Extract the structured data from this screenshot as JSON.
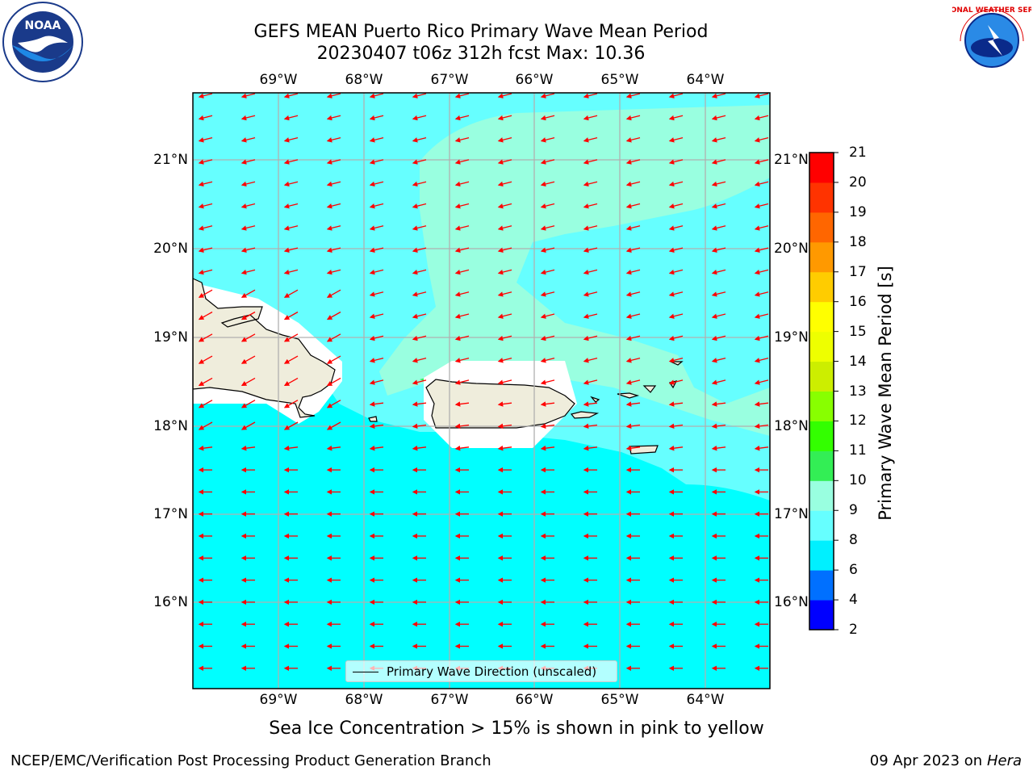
{
  "header": {
    "title_line1": "GEFS MEAN Puerto Rico Primary Wave Mean Period",
    "title_line2": "20230407 t06z 312h fcst   Max: 10.36"
  },
  "logos": {
    "left": "NOAA",
    "right": "NATIONAL WEATHER SERVICE"
  },
  "map": {
    "lon_labels": [
      "69°W",
      "68°W",
      "67°W",
      "66°W",
      "65°W",
      "64°W"
    ],
    "lat_labels": [
      "21°N",
      "20°N",
      "19°N",
      "18°N",
      "17°N",
      "16°N"
    ],
    "colors": {
      "ocean_low": "#00ffff",
      "ocean_mid": "#66ffff",
      "ocean_high": "#99ffe0",
      "land": "#efeddc",
      "arrow": "#ff0000",
      "grid": "#b0b0b0"
    }
  },
  "legend": {
    "label": "Primary Wave Direction (unscaled)"
  },
  "colorbar": {
    "title": "Primary Wave Mean Period [s]",
    "ticks": [
      "2",
      "4",
      "6",
      "8",
      "9",
      "10",
      "11",
      "12",
      "13",
      "14",
      "15",
      "16",
      "17",
      "18",
      "19",
      "20",
      "21"
    ],
    "colors": [
      "#0000ff",
      "#0070ff",
      "#00f0ff",
      "#66ffff",
      "#99ffe0",
      "#33ee55",
      "#33ff00",
      "#88ff00",
      "#ccee00",
      "#eeff00",
      "#ffff00",
      "#ffcc00",
      "#ff9900",
      "#ff6600",
      "#ff3300",
      "#ff0000"
    ]
  },
  "notes": {
    "sea_ice": "Sea Ice Concentration > 15% is shown in pink to yellow"
  },
  "footer": {
    "left": "NCEP/EMC/Verification Post Processing Product Generation Branch",
    "date": "09 Apr 2023 on",
    "host": "Hera"
  }
}
